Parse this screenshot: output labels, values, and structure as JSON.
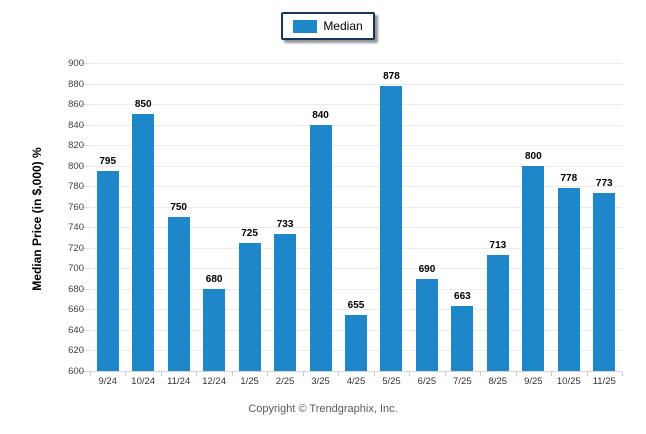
{
  "chart_data": {
    "type": "bar",
    "title": "",
    "categories": [
      "9/24",
      "10/24",
      "11/24",
      "12/24",
      "1/25",
      "2/25",
      "3/25",
      "4/25",
      "5/25",
      "6/25",
      "7/25",
      "8/25",
      "9/25",
      "10/25",
      "11/25"
    ],
    "series": [
      {
        "name": "Median",
        "values": [
          795,
          850,
          750,
          680,
          725,
          733,
          840,
          655,
          878,
          690,
          663,
          713,
          800,
          778,
          773
        ]
      }
    ],
    "xlabel": "",
    "ylabel": "Median Price (in $,000) %",
    "ylim": [
      600,
      900
    ],
    "ytick_step": 20,
    "grid": "horizontal-only",
    "legend_position": "top-center",
    "value_labels": "above-bars"
  },
  "legend": {
    "label": "Median"
  },
  "footer": {
    "copyright": "Copyright © Trendgraphix, Inc."
  },
  "colors": {
    "bar": "#1d87c9",
    "legend_border": "#16365c",
    "gridline": "#ebebeb",
    "axis_line": "#d4d4d4",
    "tick_label": "#3f3f3f",
    "value_label": "#000000",
    "footer_text": "#595959"
  }
}
